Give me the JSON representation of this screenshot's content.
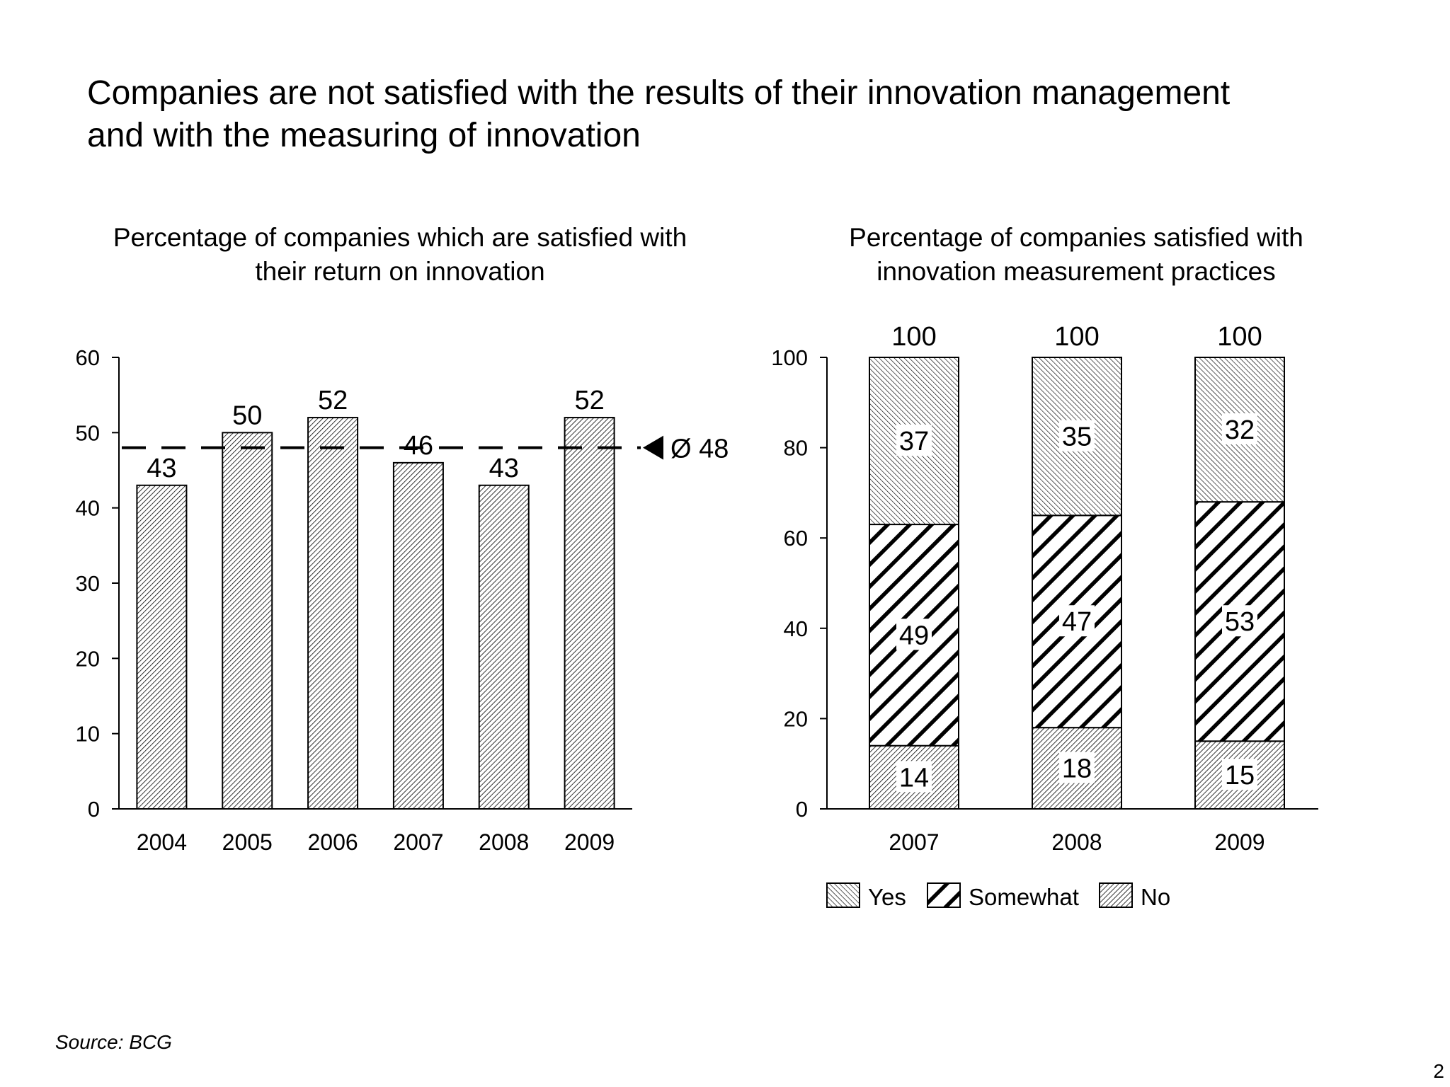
{
  "slide": {
    "title_line1": "Companies are not satisfied with the results of their innovation management",
    "title_line2": "and with the measuring of innovation",
    "source": "Source: BCG",
    "page_number": "2"
  },
  "chart_data": [
    {
      "type": "bar",
      "title_line1": "Percentage of companies which are satisfied with",
      "title_line2": "their return on innovation",
      "categories": [
        "2004",
        "2005",
        "2006",
        "2007",
        "2008",
        "2009"
      ],
      "values": [
        43,
        50,
        52,
        46,
        43,
        52
      ],
      "ylim": [
        0,
        60
      ],
      "yticks": [
        0,
        10,
        20,
        30,
        40,
        50,
        60
      ],
      "average": {
        "value": 48,
        "label": "Ø 48"
      },
      "grid": false
    },
    {
      "type": "bar",
      "stacked": true,
      "title_line1": "Percentage of companies satisfied with",
      "title_line2": "innovation measurement practices",
      "categories": [
        "2007",
        "2008",
        "2009"
      ],
      "series": [
        {
          "name": "No",
          "values": [
            14,
            18,
            15
          ]
        },
        {
          "name": "Somewhat",
          "values": [
            49,
            47,
            53
          ]
        },
        {
          "name": "Yes",
          "values": [
            37,
            35,
            32
          ]
        }
      ],
      "totals": [
        100,
        100,
        100
      ],
      "legend": [
        "Yes",
        "Somewhat",
        "No"
      ],
      "legend_position": "bottom",
      "ylim": [
        0,
        100
      ],
      "yticks": [
        0,
        20,
        40,
        60,
        80,
        100
      ],
      "grid": false
    }
  ]
}
